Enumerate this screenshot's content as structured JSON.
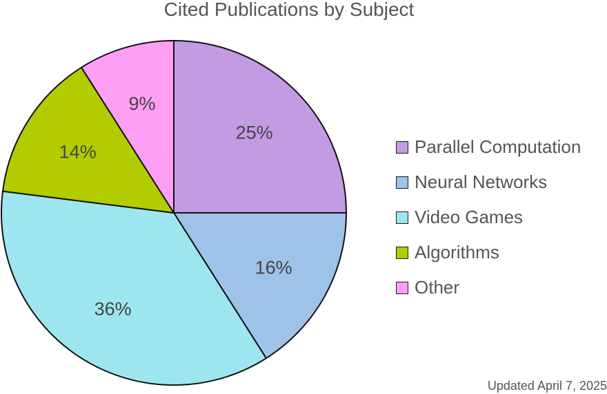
{
  "chart_data": {
    "type": "pie",
    "title": "Cited Publications by Subject",
    "categories": [
      "Parallel Computation",
      "Neural Networks",
      "Video Games",
      "Algorithms",
      "Other"
    ],
    "values": [
      25,
      16,
      36,
      14,
      9
    ],
    "labels": [
      "25%",
      "16%",
      "36%",
      "14%",
      "9%"
    ],
    "colors": [
      "#c39be2",
      "#9fc3e8",
      "#9ee6ef",
      "#b3cc00",
      "#ff9ef5"
    ],
    "start": "12 o'clock",
    "direction": "clockwise",
    "legend": "right",
    "note": "Updated April 7, 2025"
  }
}
